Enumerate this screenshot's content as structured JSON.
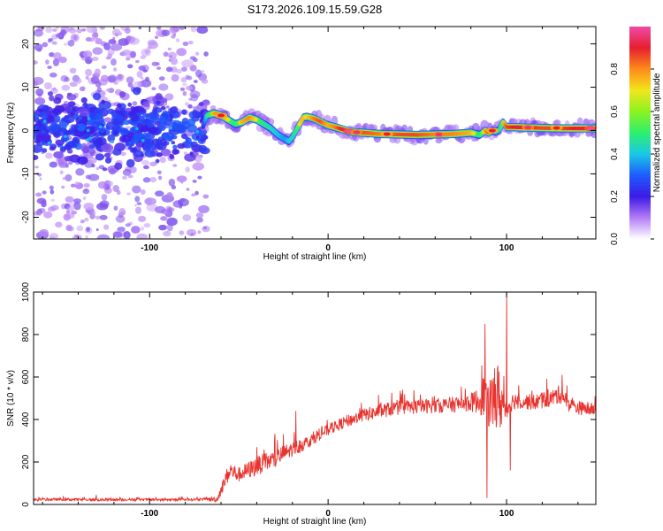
{
  "title": "S173.2026.109.15.59.G28",
  "colors": {
    "snr_line": "#e8332e",
    "axis": "#000000",
    "scatter_core": "#4b0fe0",
    "scatter_faint": "#c9b5f5",
    "colormap": [
      "#ffffff",
      "#b37cf6",
      "#3c1ae6",
      "#1e5cff",
      "#19c9e6",
      "#2ef06c",
      "#8cf21f",
      "#f2e61c",
      "#ff8a1a",
      "#e61f2e",
      "#f04aa8"
    ]
  },
  "chart_data": [
    {
      "type": "heatmap",
      "title": "",
      "xlabel": "Height of straight line (km)",
      "ylabel": "Frequency (Hz)",
      "xlim": [
        -165,
        150
      ],
      "ylim": [
        -25,
        24
      ],
      "xticks": [
        -100,
        0,
        100
      ],
      "xtick_labels": [
        "-100",
        "0",
        "100"
      ],
      "yticks": [
        -20,
        -10,
        0,
        10,
        20
      ],
      "ytick_labels": [
        "-20",
        "-10",
        "0",
        "10",
        "20"
      ],
      "colorbar": {
        "label": "Normalized spectral amplitude",
        "range": [
          0.0,
          1.0
        ],
        "ticks": [
          0.0,
          0.2,
          0.4,
          0.6,
          0.8
        ],
        "tick_labels": [
          "0.0",
          "0.2",
          "0.4",
          "0.6",
          "0.8"
        ]
      },
      "noise_region": {
        "x_range": [
          -165,
          -68
        ],
        "y_range": [
          -25,
          24
        ]
      },
      "ridge": {
        "x": [
          -70,
          -68,
          -64,
          -60,
          -56,
          -52,
          -48,
          -44,
          -40,
          -36,
          -32,
          -28,
          -24,
          -22,
          -20,
          -18,
          -16,
          -14,
          -12,
          -8,
          -4,
          0,
          4,
          8,
          12,
          16,
          20,
          30,
          40,
          50,
          60,
          70,
          80,
          85,
          88,
          90,
          92,
          94,
          96,
          98,
          100,
          105,
          110,
          120,
          130,
          140,
          150
        ],
        "y": [
          1.0,
          3.5,
          4.0,
          3.5,
          2.5,
          1.5,
          2.0,
          3.0,
          2.5,
          1.5,
          0.5,
          -1.0,
          -2.0,
          -2.5,
          -1.5,
          0.0,
          1.5,
          3.0,
          3.2,
          2.8,
          2.0,
          1.2,
          0.8,
          0.3,
          -0.2,
          -0.4,
          -0.5,
          -0.8,
          -0.9,
          -1.0,
          -0.9,
          -0.8,
          -0.5,
          -1.0,
          0.0,
          -0.5,
          0.0,
          -0.3,
          0.2,
          2.0,
          0.8,
          0.8,
          0.7,
          0.6,
          0.5,
          0.5,
          0.5
        ],
        "amplitude": [
          0.3,
          0.55,
          0.75,
          0.85,
          0.7,
          0.6,
          0.75,
          0.8,
          0.7,
          0.6,
          0.55,
          0.5,
          0.45,
          0.5,
          0.55,
          0.6,
          0.7,
          0.75,
          0.7,
          0.8,
          0.85,
          0.75,
          0.8,
          0.9,
          0.95,
          0.9,
          0.85,
          0.8,
          0.85,
          0.85,
          0.8,
          0.8,
          0.75,
          0.6,
          0.75,
          0.85,
          0.6,
          0.5,
          0.55,
          0.7,
          0.85,
          0.9,
          0.9,
          0.85,
          0.85,
          0.9,
          0.9
        ]
      },
      "hotspots": [
        {
          "x": -60,
          "y": 3.5,
          "amplitude": 0.9
        },
        {
          "x": 12,
          "y": -0.2,
          "amplitude": 1.0
        },
        {
          "x": 16,
          "y": -0.4,
          "amplitude": 0.95
        },
        {
          "x": 33,
          "y": -0.8,
          "amplitude": 0.9
        },
        {
          "x": 62,
          "y": -0.9,
          "amplitude": 0.95
        },
        {
          "x": 92,
          "y": 0.0,
          "amplitude": 0.9
        },
        {
          "x": 112,
          "y": 0.7,
          "amplitude": 0.95
        },
        {
          "x": 128,
          "y": 0.6,
          "amplitude": 0.9
        },
        {
          "x": 147,
          "y": 0.5,
          "amplitude": 1.0
        }
      ]
    },
    {
      "type": "line",
      "title": "",
      "xlabel": "Height of straight line (km)",
      "ylabel": "SNR (10 * v/v)",
      "xlim": [
        -165,
        150
      ],
      "ylim": [
        0,
        1000
      ],
      "xticks": [
        -100,
        0,
        100
      ],
      "xtick_labels": [
        "-100",
        "0",
        "100"
      ],
      "yticks": [
        0,
        200,
        400,
        600,
        800,
        1000
      ],
      "ytick_labels": [
        "0",
        "200",
        "400",
        "600",
        "800",
        "1000"
      ],
      "series": [
        {
          "name": "SNR",
          "x": [
            -165,
            -150,
            -130,
            -110,
            -90,
            -70,
            -62,
            -58,
            -55,
            -50,
            -45,
            -40,
            -35,
            -30,
            -25,
            -20,
            -15,
            -10,
            -5,
            0,
            5,
            10,
            15,
            20,
            25,
            30,
            35,
            40,
            50,
            60,
            70,
            80,
            85,
            88,
            90,
            92,
            95,
            98,
            100,
            102,
            105,
            110,
            115,
            120,
            125,
            130,
            132,
            135,
            140,
            145,
            150
          ],
          "y": [
            22,
            24,
            22,
            23,
            22,
            24,
            25,
            110,
            160,
            140,
            160,
            180,
            200,
            210,
            240,
            260,
            280,
            300,
            330,
            350,
            370,
            390,
            405,
            420,
            430,
            440,
            450,
            455,
            460,
            465,
            470,
            480,
            490,
            520,
            450,
            490,
            500,
            470,
            440,
            480,
            490,
            485,
            480,
            490,
            500,
            520,
            505,
            470,
            455,
            450,
            445
          ],
          "noise_amplitude": [
            12,
            12,
            12,
            12,
            12,
            12,
            30,
            70,
            90,
            70,
            80,
            90,
            90,
            90,
            80,
            70,
            70,
            60,
            60,
            55,
            55,
            60,
            60,
            65,
            65,
            70,
            70,
            70,
            70,
            70,
            75,
            90,
            130,
            250,
            180,
            260,
            350,
            220,
            120,
            90,
            80,
            75,
            75,
            80,
            80,
            90,
            80,
            70,
            65,
            65,
            60
          ],
          "spikes": [
            {
              "x": -130,
              "y": 45
            },
            {
              "x": -40,
              "y": 270
            },
            {
              "x": -30,
              "y": 310
            },
            {
              "x": -25,
              "y": 330
            },
            {
              "x": -18,
              "y": 440
            },
            {
              "x": 88,
              "y": 850
            },
            {
              "x": 89,
              "y": 30
            },
            {
              "x": 100,
              "y": 1000
            },
            {
              "x": 102,
              "y": 160
            },
            {
              "x": 131,
              "y": 610
            }
          ]
        }
      ]
    }
  ]
}
